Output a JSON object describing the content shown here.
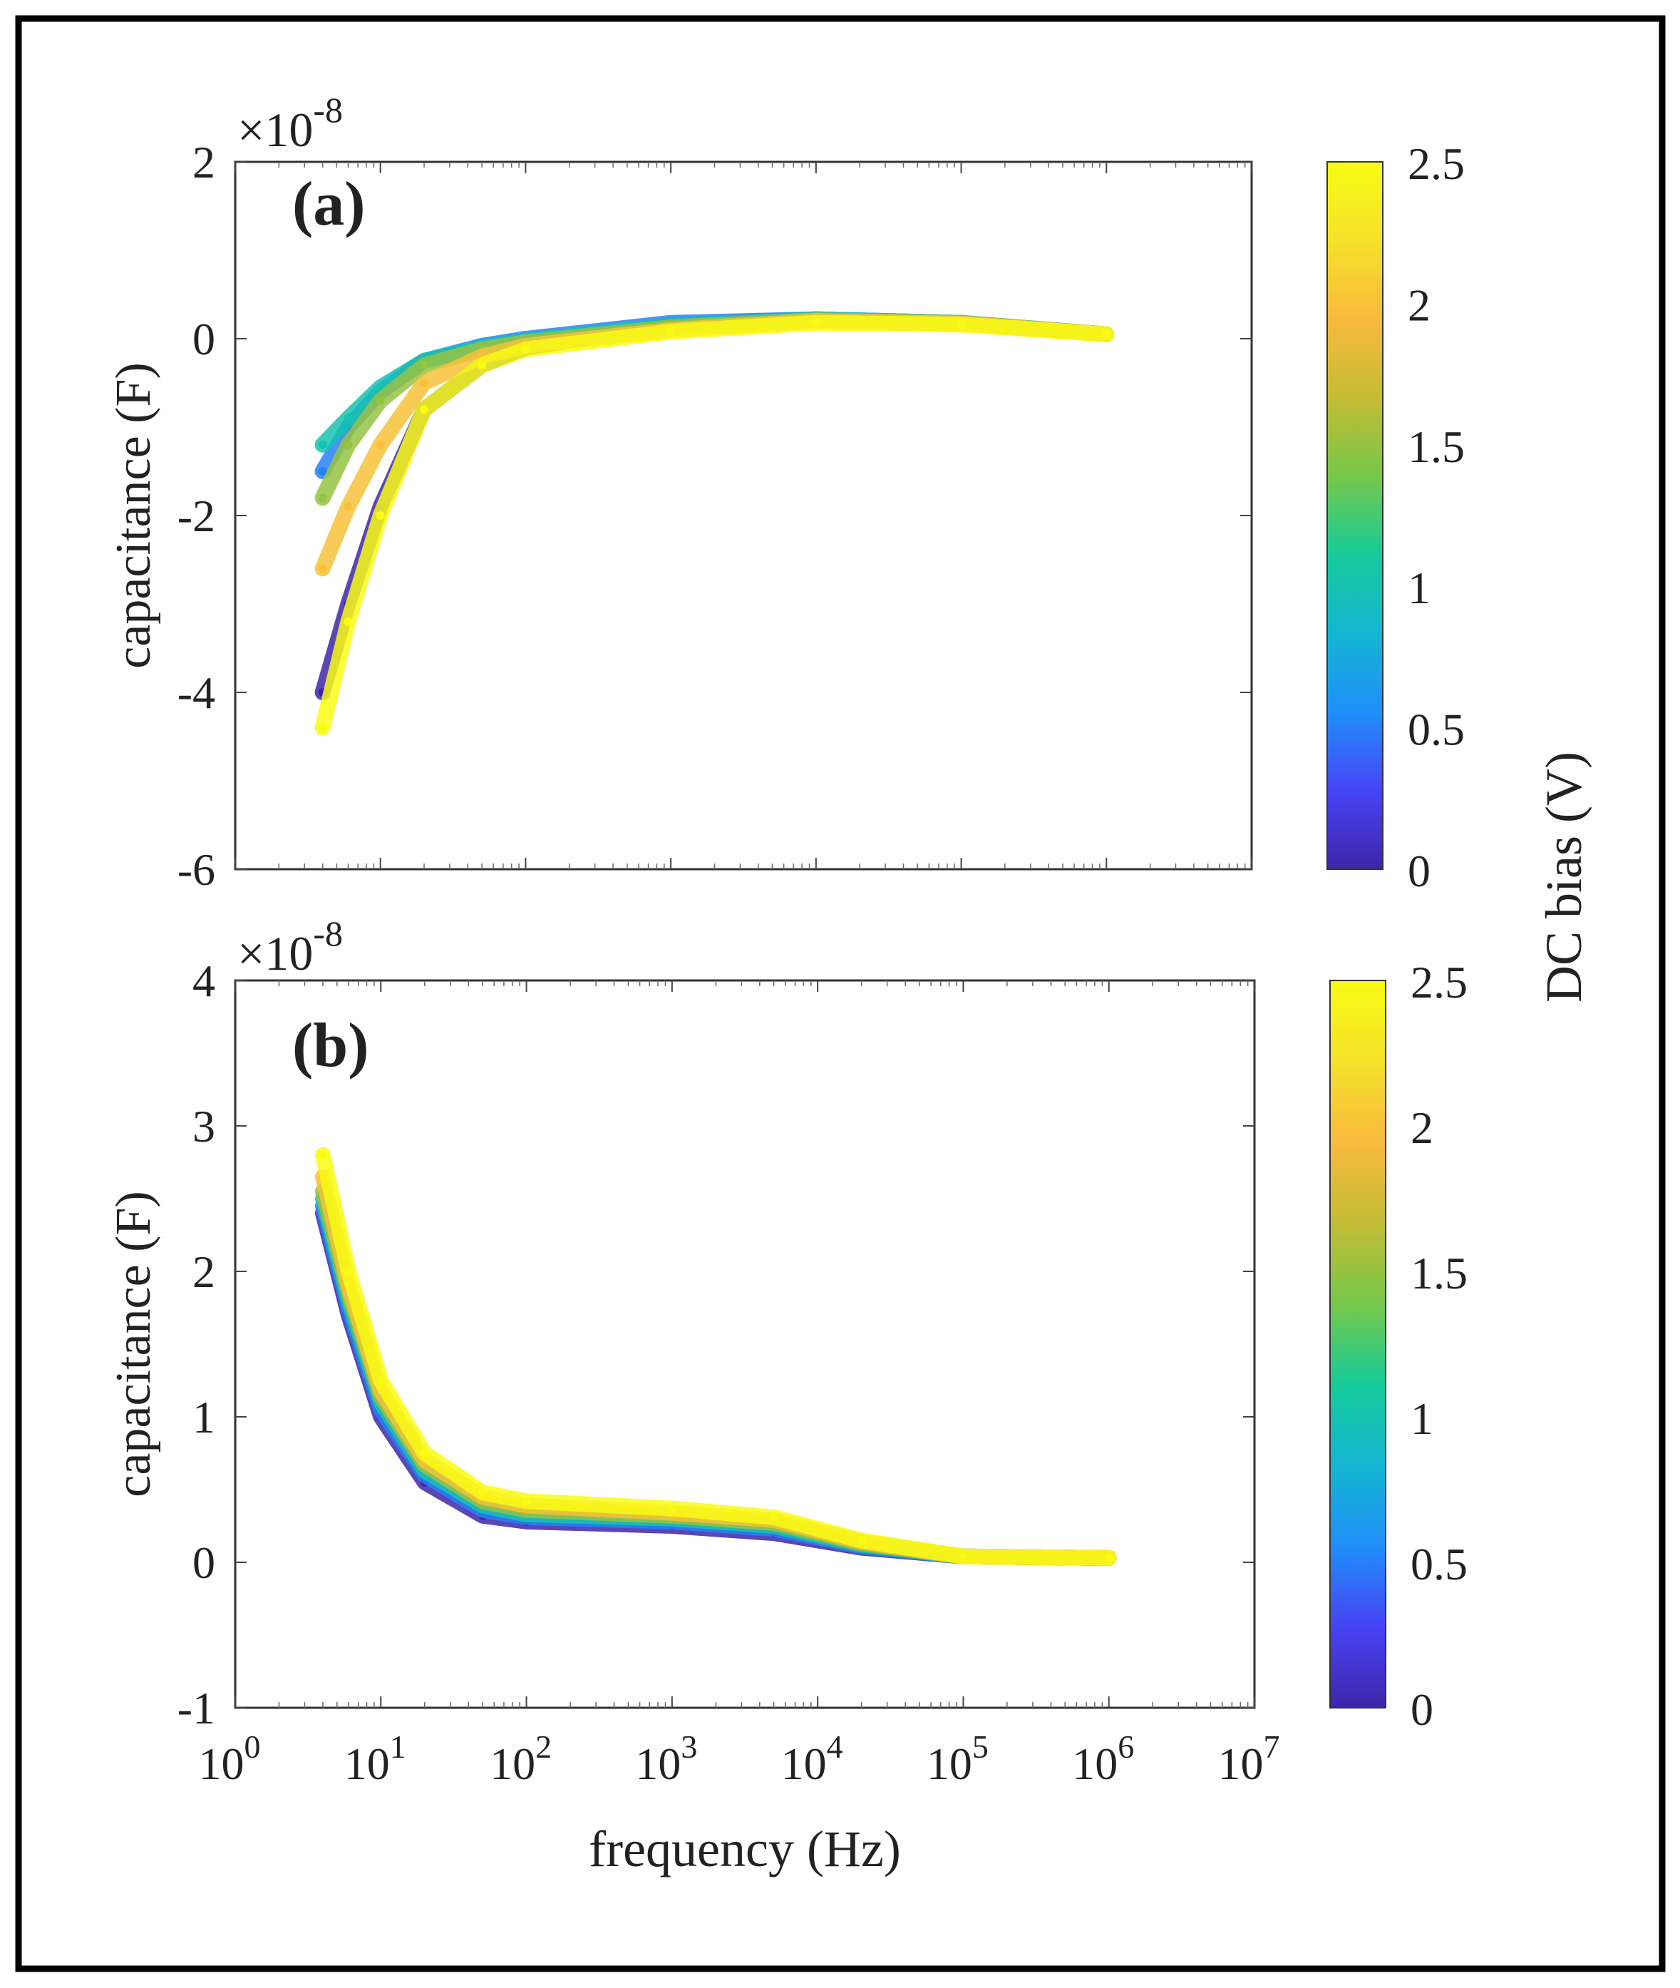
{
  "chart_data": [
    {
      "type": "scatter",
      "panel_label": "(a)",
      "xlabel": "",
      "ylabel": "capacitance (F)",
      "y_exponent": "-8",
      "x_scale": "log",
      "xlim": [
        1,
        10000000
      ],
      "ylim": [
        -6,
        2
      ],
      "yticks": [
        -6,
        -4,
        -2,
        0,
        2
      ],
      "ytick_labels": [
        "-6",
        "-4",
        "-2",
        "0",
        "2"
      ],
      "color_variable": "DC bias (V)",
      "color_range": [
        0,
        2.5
      ],
      "series": [
        {
          "name": "DC bias 0 V",
          "bias": 0.0,
          "x": [
            4,
            6,
            10,
            20,
            50,
            100,
            1000,
            10000,
            100000,
            1000000
          ],
          "y": [
            -4.0,
            -3.0,
            -1.9,
            -0.8,
            -0.3,
            -0.1,
            0.15,
            0.22,
            0.18,
            0.05
          ]
        },
        {
          "name": "DC bias 0.5 V",
          "bias": 0.5,
          "x": [
            4,
            6,
            10,
            20,
            50,
            100,
            1000,
            10000,
            100000,
            1000000
          ],
          "y": [
            -1.5,
            -1.0,
            -0.6,
            -0.25,
            -0.08,
            0.0,
            0.18,
            0.22,
            0.18,
            0.05
          ]
        },
        {
          "name": "DC bias 1 V",
          "bias": 1.0,
          "x": [
            4,
            6,
            10,
            20,
            50,
            100,
            1000,
            10000,
            100000,
            1000000
          ],
          "y": [
            -1.2,
            -0.9,
            -0.55,
            -0.25,
            -0.1,
            -0.02,
            0.15,
            0.22,
            0.18,
            0.05
          ]
        },
        {
          "name": "DC bias 1.5 V",
          "bias": 1.5,
          "x": [
            4,
            6,
            10,
            20,
            50,
            100,
            1000,
            10000,
            100000,
            1000000
          ],
          "y": [
            -1.8,
            -1.2,
            -0.7,
            -0.3,
            -0.12,
            -0.04,
            0.13,
            0.21,
            0.18,
            0.05
          ]
        },
        {
          "name": "DC bias 2 V",
          "bias": 2.0,
          "x": [
            4,
            6,
            10,
            20,
            50,
            100,
            1000,
            10000,
            100000,
            1000000
          ],
          "y": [
            -2.6,
            -1.9,
            -1.2,
            -0.5,
            -0.2,
            -0.08,
            0.1,
            0.2,
            0.17,
            0.05
          ]
        },
        {
          "name": "DC bias 2.5 V",
          "bias": 2.5,
          "x": [
            4,
            6,
            10,
            20,
            50,
            100,
            1000,
            10000,
            100000,
            1000000
          ],
          "y": [
            -4.4,
            -3.2,
            -2.0,
            -0.8,
            -0.3,
            -0.12,
            0.08,
            0.18,
            0.16,
            0.05
          ]
        }
      ]
    },
    {
      "type": "scatter",
      "panel_label": "(b)",
      "xlabel": "frequency (Hz)",
      "ylabel": "capacitance (F)",
      "y_exponent": "-8",
      "x_scale": "log",
      "xlim": [
        1,
        10000000
      ],
      "ylim": [
        -1,
        4
      ],
      "yticks": [
        -1,
        0,
        1,
        2,
        3,
        4
      ],
      "ytick_labels": [
        "-1",
        "0",
        "1",
        "2",
        "3",
        "4"
      ],
      "xtick_bases": [
        "10",
        "10",
        "10",
        "10",
        "10",
        "10",
        "10",
        "10"
      ],
      "xtick_exponents": [
        "0",
        "1",
        "2",
        "3",
        "4",
        "5",
        "6",
        "7"
      ],
      "color_variable": "DC bias (V)",
      "color_range": [
        0,
        2.5
      ],
      "series": [
        {
          "name": "DC bias 0 V",
          "bias": 0.0,
          "x": [
            4,
            6,
            10,
            20,
            50,
            100,
            1000,
            5000,
            20000,
            100000,
            1000000
          ],
          "y": [
            2.4,
            1.7,
            1.0,
            0.55,
            0.32,
            0.28,
            0.25,
            0.2,
            0.1,
            0.04,
            0.03
          ]
        },
        {
          "name": "DC bias 0.5 V",
          "bias": 0.5,
          "x": [
            4,
            6,
            10,
            20,
            50,
            100,
            1000,
            5000,
            20000,
            100000,
            1000000
          ],
          "y": [
            2.45,
            1.75,
            1.05,
            0.6,
            0.36,
            0.31,
            0.28,
            0.23,
            0.11,
            0.04,
            0.03
          ]
        },
        {
          "name": "DC bias 1 V",
          "bias": 1.0,
          "x": [
            4,
            6,
            10,
            20,
            50,
            100,
            1000,
            5000,
            20000,
            100000,
            1000000
          ],
          "y": [
            2.5,
            1.8,
            1.1,
            0.63,
            0.39,
            0.33,
            0.3,
            0.25,
            0.12,
            0.04,
            0.03
          ]
        },
        {
          "name": "DC bias 1.5 V",
          "bias": 1.5,
          "x": [
            4,
            6,
            10,
            20,
            50,
            100,
            1000,
            5000,
            20000,
            100000,
            1000000
          ],
          "y": [
            2.55,
            1.85,
            1.14,
            0.67,
            0.42,
            0.36,
            0.32,
            0.27,
            0.13,
            0.04,
            0.03
          ]
        },
        {
          "name": "DC bias 2 V",
          "bias": 2.0,
          "x": [
            4,
            6,
            10,
            20,
            50,
            100,
            1000,
            5000,
            20000,
            100000,
            1000000
          ],
          "y": [
            2.65,
            1.9,
            1.18,
            0.7,
            0.45,
            0.39,
            0.34,
            0.29,
            0.14,
            0.04,
            0.03
          ]
        },
        {
          "name": "DC bias 2.5 V",
          "bias": 2.5,
          "x": [
            4,
            6,
            10,
            20,
            50,
            100,
            1000,
            5000,
            20000,
            100000,
            1000000
          ],
          "y": [
            2.8,
            2.0,
            1.25,
            0.75,
            0.48,
            0.42,
            0.37,
            0.31,
            0.15,
            0.04,
            0.03
          ]
        }
      ]
    }
  ],
  "colorbars": [
    {
      "tick_values": [
        0,
        0.5,
        1,
        1.5,
        2,
        2.5
      ],
      "tick_labels": [
        "0",
        "0.5",
        "1",
        "1.5",
        "2",
        "2.5"
      ],
      "min": 0,
      "max": 2.5
    },
    {
      "tick_values": [
        0,
        0.5,
        1,
        1.5,
        2,
        2.5
      ],
      "tick_labels": [
        "0",
        "0.5",
        "1",
        "1.5",
        "2",
        "2.5"
      ],
      "min": 0,
      "max": 2.5
    }
  ],
  "colorbar_label": "DC bias (V)",
  "exponent_prefix": "×10",
  "colormap": [
    "#3e26a8",
    "#4743f6",
    "#1f8ff8",
    "#15b6d2",
    "#16cb9a",
    "#76c84a",
    "#c4bc35",
    "#f8ba3d",
    "#f5e22a",
    "#f9fb14"
  ]
}
